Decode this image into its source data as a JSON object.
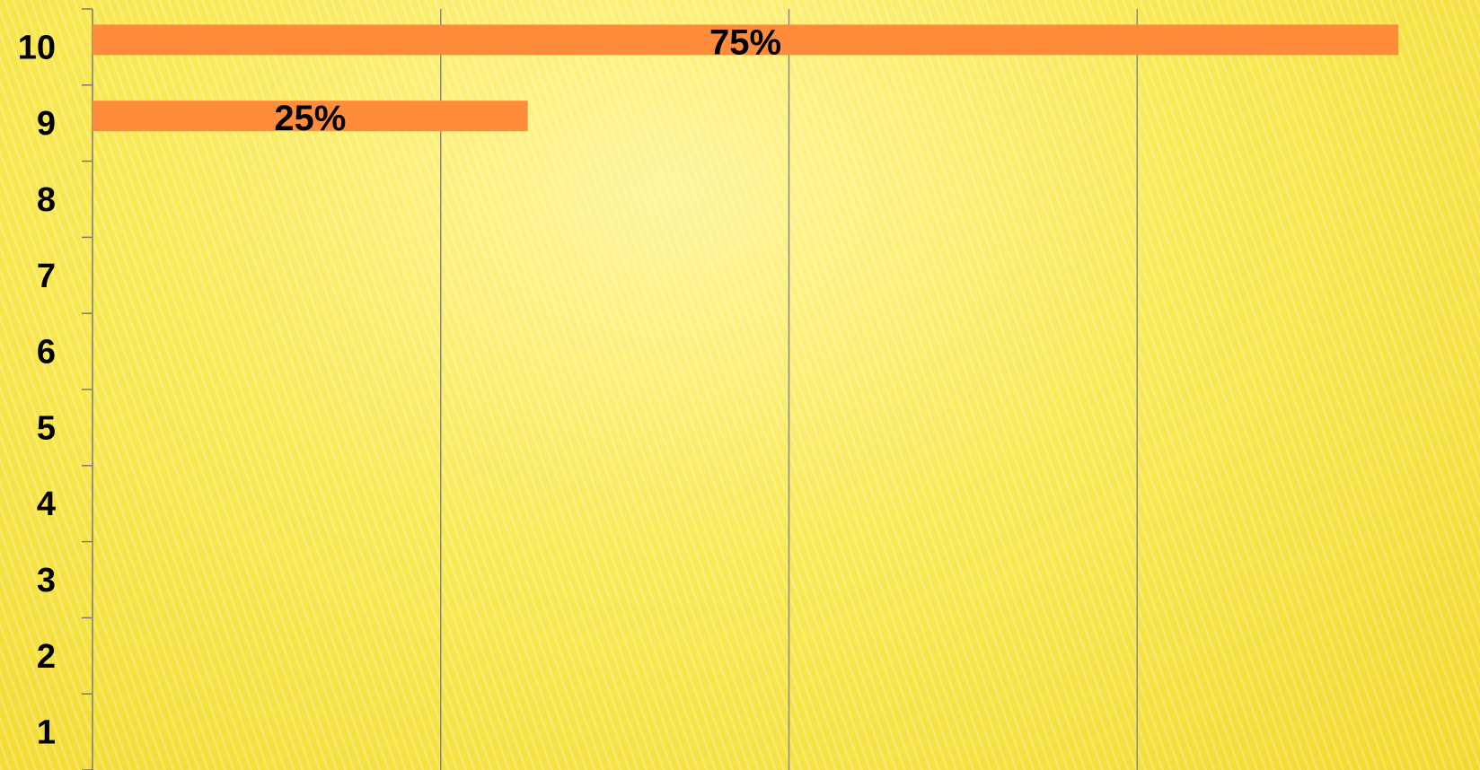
{
  "chart_data": {
    "type": "bar",
    "orientation": "horizontal",
    "categories": [
      "1",
      "2",
      "3",
      "4",
      "5",
      "6",
      "7",
      "8",
      "9",
      "10"
    ],
    "values": [
      0,
      0,
      0,
      0,
      0,
      0,
      0,
      0,
      25,
      75
    ],
    "data_labels": [
      "",
      "",
      "",
      "",
      "",
      "",
      "",
      "",
      "25%",
      "75%"
    ],
    "xlim": [
      0,
      80
    ],
    "title": "",
    "xlabel": "",
    "ylabel": "",
    "grid": "vertical",
    "legend": "none",
    "bar_color": "#ff8c3a",
    "background_color": "#f7e84a"
  }
}
